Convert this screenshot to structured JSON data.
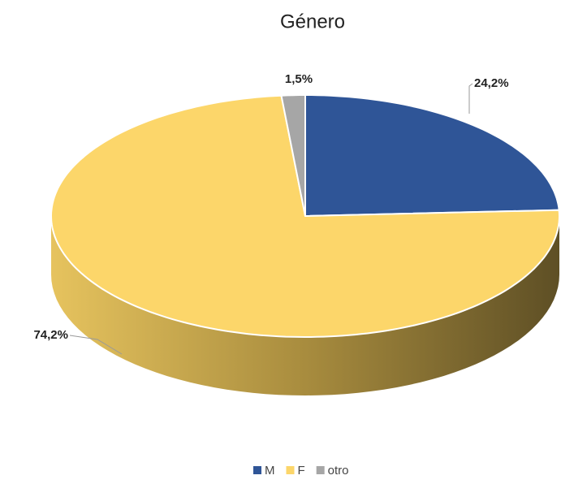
{
  "chart_data": {
    "type": "pie",
    "title": "Género",
    "categories": [
      "M",
      "F",
      "otro"
    ],
    "values": [
      24.2,
      74.2,
      1.5
    ],
    "value_labels": [
      "24,2%",
      "74,2%",
      "1,5%"
    ],
    "colors": [
      "#2f5597",
      "#fcd66a",
      "#a6a6a6"
    ],
    "legend": "bottom"
  }
}
